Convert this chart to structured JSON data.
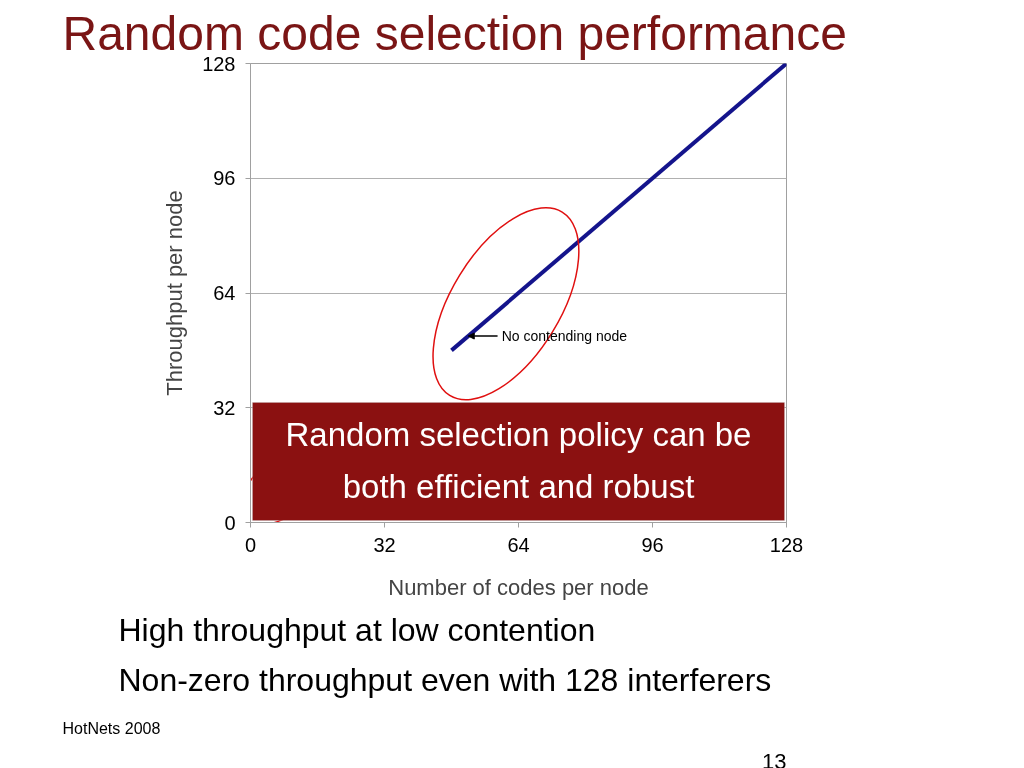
{
  "chart_data": {
    "type": "line",
    "title": "Random code selection performance",
    "xlabel": "Number of codes per node",
    "ylabel": "Throughput per node",
    "x": [
      48,
      128
    ],
    "series": [
      {
        "color": "#14148c",
        "values": [
          48,
          128
        ]
      }
    ],
    "xlim": [
      0,
      128
    ],
    "ylim": [
      0,
      128
    ],
    "xticks": [
      0,
      32,
      64,
      96,
      128
    ],
    "yticks": [
      0,
      32,
      64,
      96,
      128
    ],
    "grid": "y",
    "marker": "none",
    "line_style": "solid",
    "annotations": [
      {
        "text": "No contending node",
        "x": 52,
        "y": 52
      },
      "Random selection policy can be\nboth efficient and robust",
      "High throughput at low contention",
      "Non-zero throughput even with 128 interferers",
      "HotNets 2008",
      "13"
    ]
  }
}
